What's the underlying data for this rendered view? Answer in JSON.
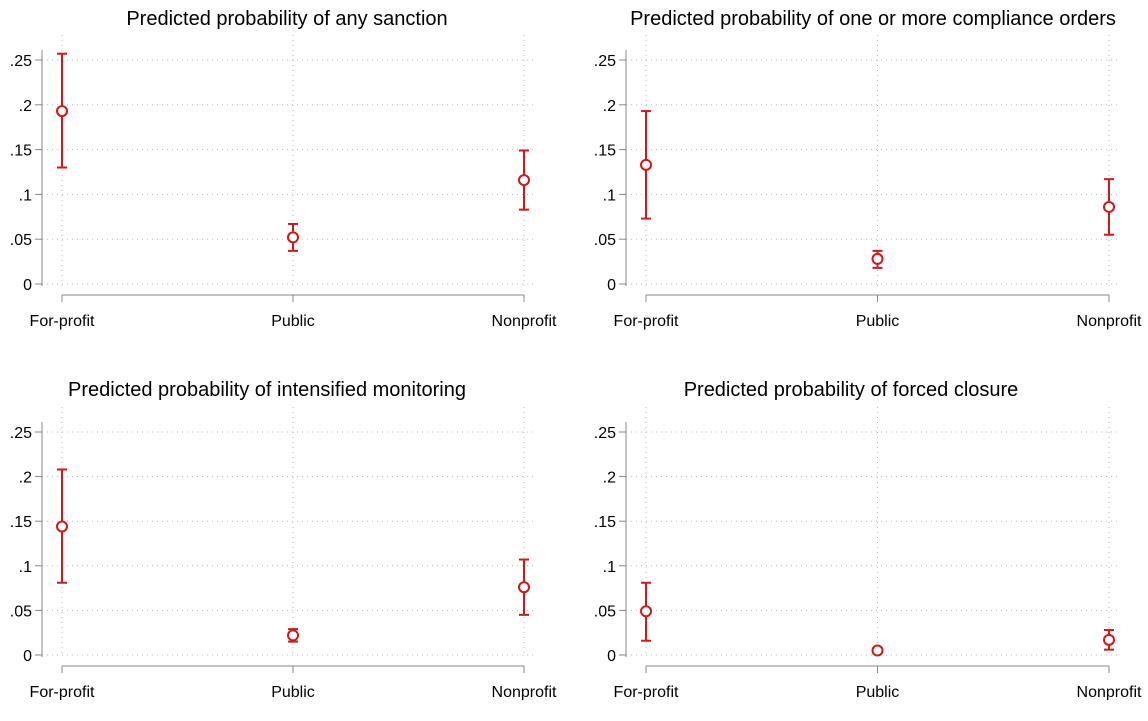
{
  "chart_data": [
    {
      "type": "scatter",
      "title": "Predicted probability of any sanction",
      "categories": [
        "For-profit",
        "Public",
        "Nonprofit"
      ],
      "y_ticks": [
        "0",
        ".05",
        ".1",
        ".15",
        ".2",
        ".25"
      ],
      "ylim": [
        0,
        0.25
      ],
      "grid": true,
      "series": [
        {
          "estimate": [
            0.193,
            0.052,
            0.116
          ],
          "ci_low": [
            0.13,
            0.037,
            0.083
          ],
          "ci_high": [
            0.257,
            0.067,
            0.149
          ]
        }
      ],
      "color": "#cc1a1a"
    },
    {
      "type": "scatter",
      "title": "Predicted probability of one or more compliance orders",
      "categories": [
        "For-profit",
        "Public",
        "Nonprofit"
      ],
      "y_ticks": [
        "0",
        ".05",
        ".1",
        ".15",
        ".2",
        ".25"
      ],
      "ylim": [
        0,
        0.25
      ],
      "grid": true,
      "series": [
        {
          "estimate": [
            0.133,
            0.028,
            0.086
          ],
          "ci_low": [
            0.073,
            0.018,
            0.055
          ],
          "ci_high": [
            0.193,
            0.037,
            0.117
          ]
        }
      ],
      "color": "#cc1a1a"
    },
    {
      "type": "scatter",
      "title": "Predicted probability of intensified monitoring",
      "categories": [
        "For-profit",
        "Public",
        "Nonprofit"
      ],
      "y_ticks": [
        "0",
        ".05",
        ".1",
        ".15",
        ".2",
        ".25"
      ],
      "ylim": [
        0,
        0.25
      ],
      "grid": true,
      "series": [
        {
          "estimate": [
            0.144,
            0.022,
            0.076
          ],
          "ci_low": [
            0.081,
            0.015,
            0.045
          ],
          "ci_high": [
            0.208,
            0.029,
            0.107
          ]
        }
      ],
      "color": "#cc1a1a"
    },
    {
      "type": "scatter",
      "title": "Predicted probability of forced closure",
      "categories": [
        "For-profit",
        "Public",
        "Nonprofit"
      ],
      "y_ticks": [
        "0",
        ".05",
        ".1",
        ".15",
        ".2",
        ".25"
      ],
      "ylim": [
        0,
        0.25
      ],
      "grid": true,
      "series": [
        {
          "estimate": [
            0.049,
            0.005,
            0.017
          ],
          "ci_low": [
            0.016,
            0.002,
            0.006
          ],
          "ci_high": [
            0.081,
            0.008,
            0.028
          ]
        }
      ],
      "color": "#cc1a1a"
    }
  ]
}
